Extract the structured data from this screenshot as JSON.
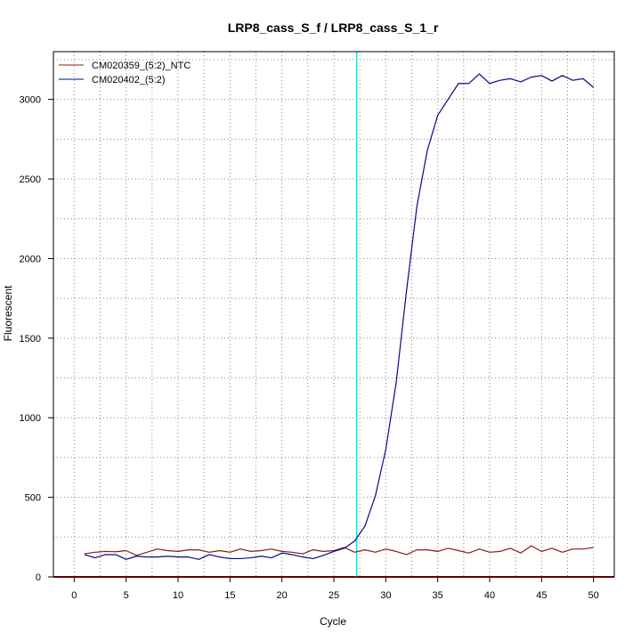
{
  "chart_data": {
    "type": "line",
    "title": "LRP8_cass_S_f / LRP8_cass_S_1_r",
    "xlabel": "Cycle",
    "ylabel": "Fluorescent",
    "xlim": [
      -2,
      52
    ],
    "ylim": [
      0,
      3300
    ],
    "xticks": [
      0,
      5,
      10,
      15,
      20,
      25,
      30,
      35,
      40,
      45,
      50
    ],
    "yticks": [
      0,
      500,
      1000,
      1500,
      2000,
      2500,
      3000
    ],
    "xtick_labels": [
      "0",
      "5",
      "10",
      "15",
      "20",
      "25",
      "30",
      "35",
      "40",
      "45",
      "50"
    ],
    "ytick_labels": [
      "0",
      "500",
      "1000",
      "1500",
      "2000",
      "2500",
      "3000"
    ],
    "grid": true,
    "legend_position": "top-left",
    "threshold_line": {
      "x": 27.2,
      "color": "#00e5ee"
    },
    "baseline": {
      "y": 0,
      "color": "#cc0000"
    },
    "x": [
      1,
      2,
      3,
      4,
      5,
      6,
      7,
      8,
      9,
      10,
      11,
      12,
      13,
      14,
      15,
      16,
      17,
      18,
      19,
      20,
      21,
      22,
      23,
      24,
      25,
      26,
      27,
      28,
      29,
      30,
      31,
      32,
      33,
      34,
      35,
      36,
      37,
      38,
      39,
      40,
      41,
      42,
      43,
      44,
      45,
      46,
      47,
      48,
      49,
      50
    ],
    "series": [
      {
        "name": "CM020359_(5:2)_NTC",
        "color": "#8b1a1a",
        "values": [
          145,
          155,
          160,
          158,
          165,
          135,
          155,
          175,
          165,
          160,
          170,
          170,
          155,
          165,
          155,
          175,
          160,
          165,
          175,
          160,
          155,
          145,
          170,
          160,
          165,
          185,
          155,
          170,
          155,
          175,
          160,
          140,
          170,
          170,
          160,
          180,
          165,
          150,
          175,
          155,
          160,
          180,
          150,
          195,
          160,
          180,
          155,
          175,
          175,
          185
        ]
      },
      {
        "name": "CM020402_(5:2)",
        "color": "#0a0a80",
        "values": [
          140,
          120,
          140,
          140,
          110,
          130,
          125,
          125,
          130,
          125,
          125,
          110,
          140,
          125,
          115,
          115,
          120,
          130,
          120,
          150,
          140,
          125,
          115,
          135,
          160,
          180,
          225,
          320,
          510,
          800,
          1220,
          1800,
          2330,
          2680,
          2900,
          3000,
          3100,
          3100,
          3160,
          3100,
          3120,
          3130,
          3110,
          3140,
          3150,
          3115,
          3150,
          3120,
          3130,
          3075
        ]
      }
    ]
  }
}
